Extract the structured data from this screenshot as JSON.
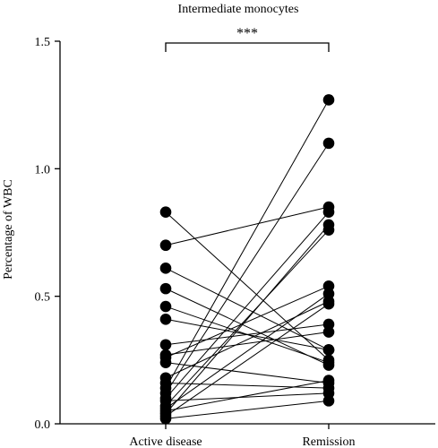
{
  "chart_data": {
    "type": "paired-scatter",
    "title": "Intermediate monocytes",
    "ylabel": "Percentage of WBC",
    "xlabel": "",
    "ylim": [
      0,
      1.5
    ],
    "yticks": [
      "0.0",
      "0.5",
      "1.0",
      "1.5"
    ],
    "ytick_values": [
      0,
      0.5,
      1.0,
      1.5
    ],
    "categories": [
      "Active disease",
      "Remission"
    ],
    "significance": "***",
    "pairs": [
      [
        0.83,
        0.25
      ],
      [
        0.7,
        0.85
      ],
      [
        0.61,
        0.29
      ],
      [
        0.53,
        0.23
      ],
      [
        0.46,
        0.24
      ],
      [
        0.41,
        0.29
      ],
      [
        0.31,
        0.39
      ],
      [
        0.27,
        0.36
      ],
      [
        0.26,
        0.54
      ],
      [
        0.24,
        0.16
      ],
      [
        0.18,
        0.48
      ],
      [
        0.16,
        0.14
      ],
      [
        0.14,
        1.27
      ],
      [
        0.12,
        1.1
      ],
      [
        0.1,
        0.83
      ],
      [
        0.09,
        0.12
      ],
      [
        0.07,
        0.76
      ],
      [
        0.06,
        0.51
      ],
      [
        0.04,
        0.78
      ],
      [
        0.03,
        0.47
      ],
      [
        0.05,
        0.17
      ],
      [
        0.02,
        0.09
      ]
    ]
  }
}
